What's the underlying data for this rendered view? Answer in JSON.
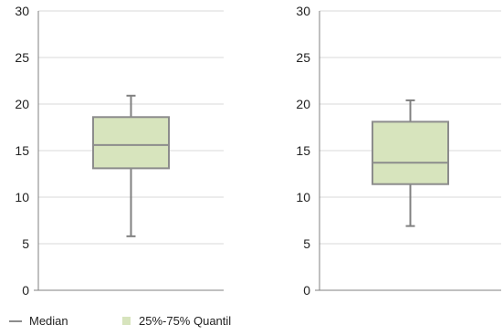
{
  "chart_data": {
    "type": "box",
    "y_ticks": [
      0,
      5,
      10,
      15,
      20,
      25,
      30
    ],
    "ylim": [
      0,
      30
    ],
    "grid": true,
    "legend_position": "bottom-left",
    "legend": [
      {
        "label": "Median",
        "kind": "line",
        "color": "#8c8c8c"
      },
      {
        "label": "25%-75% Quantil",
        "kind": "box",
        "color": "#d7e4bd"
      }
    ],
    "series": [
      {
        "min": 5.8,
        "q1": 13.1,
        "median": 15.6,
        "q3": 18.6,
        "max": 20.9
      },
      {
        "min": 6.9,
        "q1": 11.4,
        "median": 13.7,
        "q3": 18.1,
        "max": 20.4
      }
    ]
  },
  "colors": {
    "box_fill": "#d7e4bd",
    "box_stroke": "#8c8c8c",
    "whisker": "#808080",
    "grid": "#d9d9d9",
    "axis": "#808080"
  }
}
